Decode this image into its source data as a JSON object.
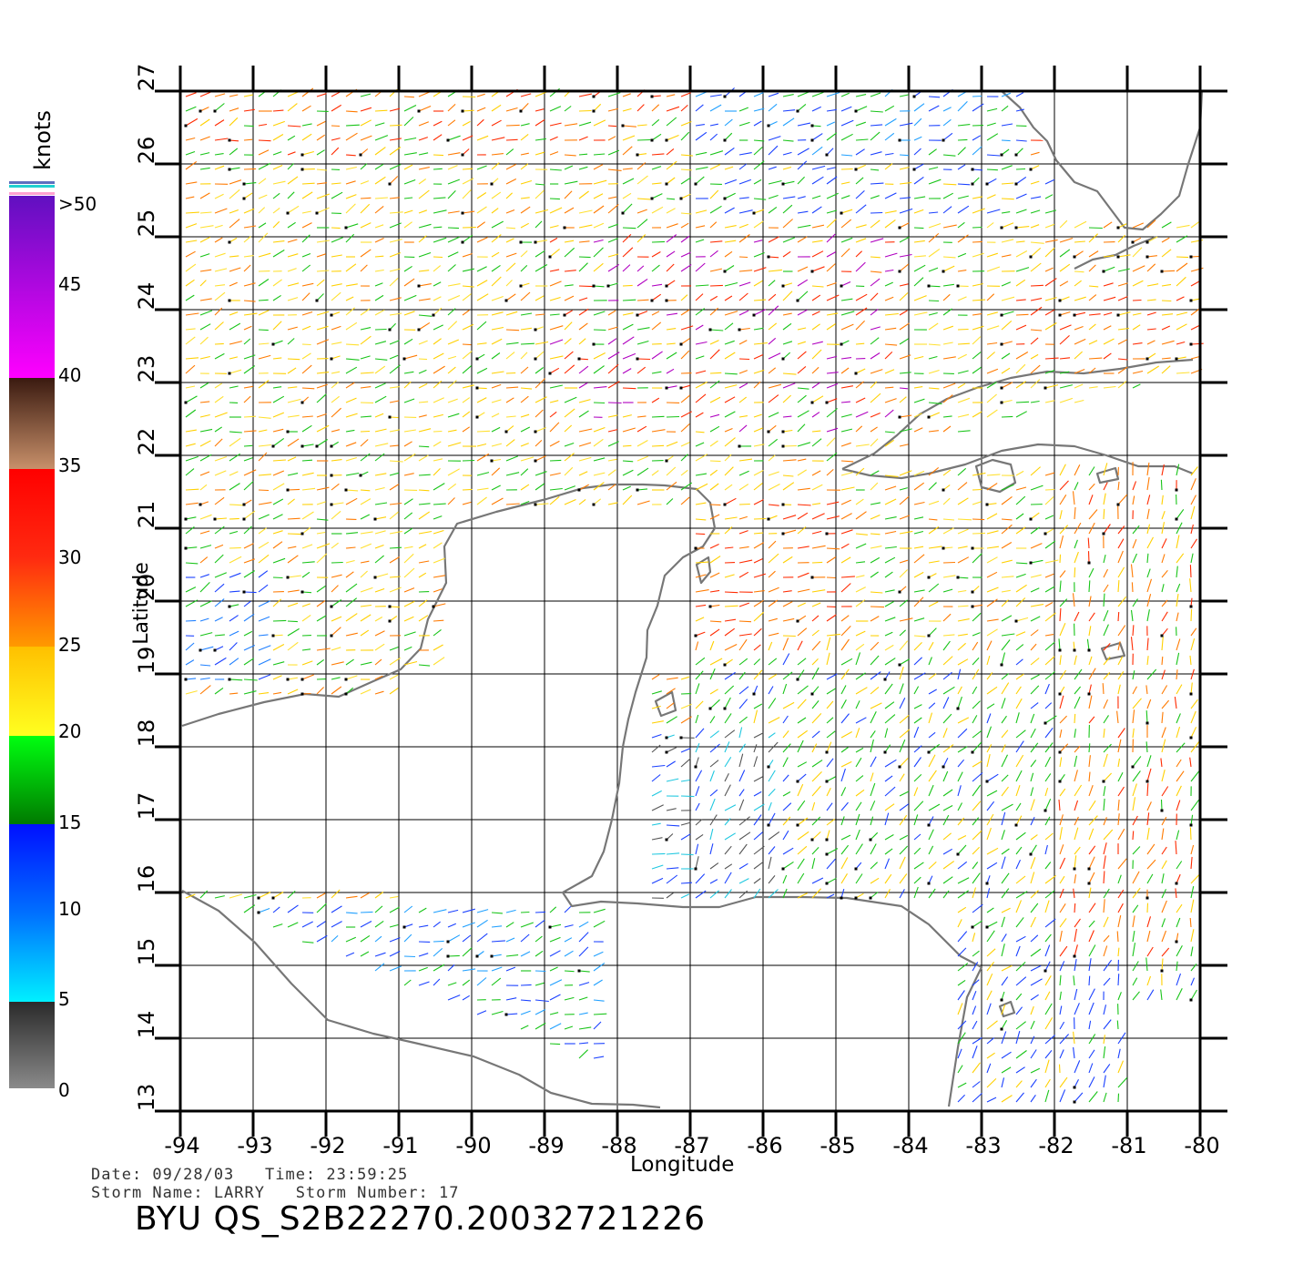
{
  "plot": {
    "xlabel": "Longitude",
    "ylabel": "Latitude",
    "x_ticks": [
      "-94",
      "-93",
      "-92",
      "-91",
      "-90",
      "-89",
      "-88",
      "-87",
      "-86",
      "-85",
      "-84",
      "-83",
      "-82",
      "-81",
      "-80"
    ],
    "y_ticks": [
      "13",
      "14",
      "15",
      "16",
      "17",
      "18",
      "19",
      "20",
      "21",
      "22",
      "23",
      "24",
      "25",
      "26",
      "27"
    ],
    "xlim": [
      -94,
      -80
    ],
    "ylim": [
      13,
      27
    ]
  },
  "colorbar": {
    "title": "knots",
    "labels": [
      ">50",
      "45",
      "40",
      "35",
      "30",
      "25",
      "20",
      "15",
      "10",
      "5",
      "0"
    ]
  },
  "info": {
    "date_line": "Date: 09/28/03   Time: 23:59:25",
    "storm_line": "Storm Name: LARRY   Storm Number: 17",
    "product_id": "BYU QS_S2B22270.20032721226"
  },
  "colors": {
    "coast": "#777777",
    "grid": "#000000",
    "wind_low": "#1a1aff",
    "wind_mid": "#18c418",
    "wind_high": "#ffd000",
    "wind_vhigh": "#ff2a00"
  }
}
